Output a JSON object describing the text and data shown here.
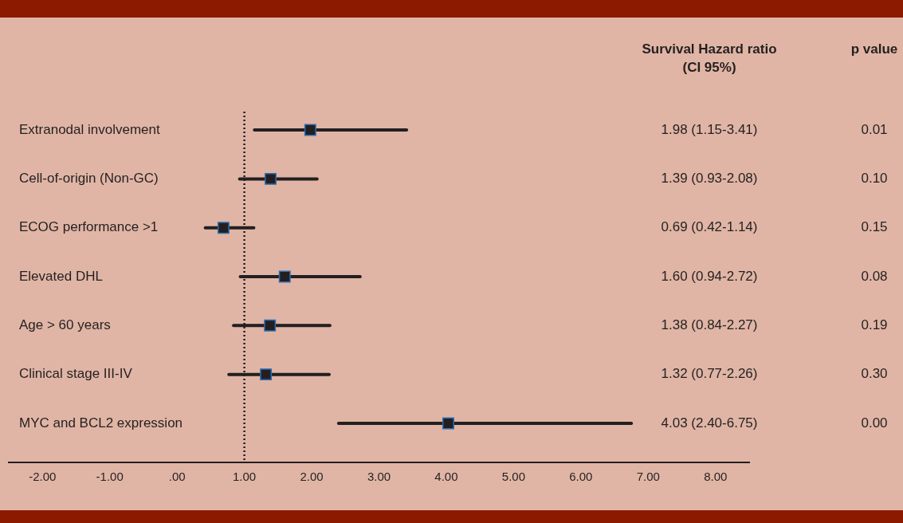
{
  "chart_data": {
    "type": "scatter",
    "orientation": "horizontal",
    "categories": [
      "Extranodal involvement",
      "Cell-of-origin (Non-GC)",
      "ECOG performance >1",
      "Elevated DHL",
      "Age > 60 years",
      "Clinical stage III-IV",
      "MYC and BCL2 expression"
    ],
    "values": [
      1.98,
      1.39,
      0.69,
      1.6,
      1.38,
      1.32,
      4.03
    ],
    "errors": [
      [
        1.15,
        3.41
      ],
      [
        0.93,
        2.08
      ],
      [
        0.42,
        1.14
      ],
      [
        0.94,
        2.72
      ],
      [
        0.84,
        2.27
      ],
      [
        0.77,
        2.26
      ],
      [
        2.4,
        6.75
      ]
    ],
    "annotations": [
      "Survival Hazard ratio\n(CI 95%)",
      "p value",
      "1.98 (1.15-3.41)",
      "1.39 (0.93-2.08)",
      "0.69 (0.42-1.14)",
      "1.60 (0.94-2.72)",
      "1.38 (0.84-2.27)",
      "1.32 (0.77-2.26)",
      "4.03 (2.40-6.75)",
      "0.01",
      "0.10",
      "0.15",
      "0.08",
      "0.19",
      "0.30",
      "0.00"
    ],
    "color": "#231f20",
    "marker": "square",
    "xlim": [
      -2.5,
      8.5
    ],
    "xticks": [
      {
        "value": -2,
        "label": "-2.00"
      },
      {
        "value": -1,
        "label": "-1.00"
      },
      {
        "value": 0,
        "label": ".00"
      },
      {
        "value": 1,
        "label": "1.00"
      },
      {
        "value": 2,
        "label": "2.00"
      },
      {
        "value": 3,
        "label": "3.00"
      },
      {
        "value": 4,
        "label": "4.00"
      },
      {
        "value": 5,
        "label": "5.00"
      },
      {
        "value": 6,
        "label": "6.00"
      },
      {
        "value": 7,
        "label": "7.00"
      },
      {
        "value": 8,
        "label": "8.00"
      }
    ],
    "ref_lines": [
      {
        "axis": "x",
        "value": 1,
        "line_style": "dotted",
        "color": "#231f20"
      }
    ],
    "grid": false,
    "legend": false
  }
}
